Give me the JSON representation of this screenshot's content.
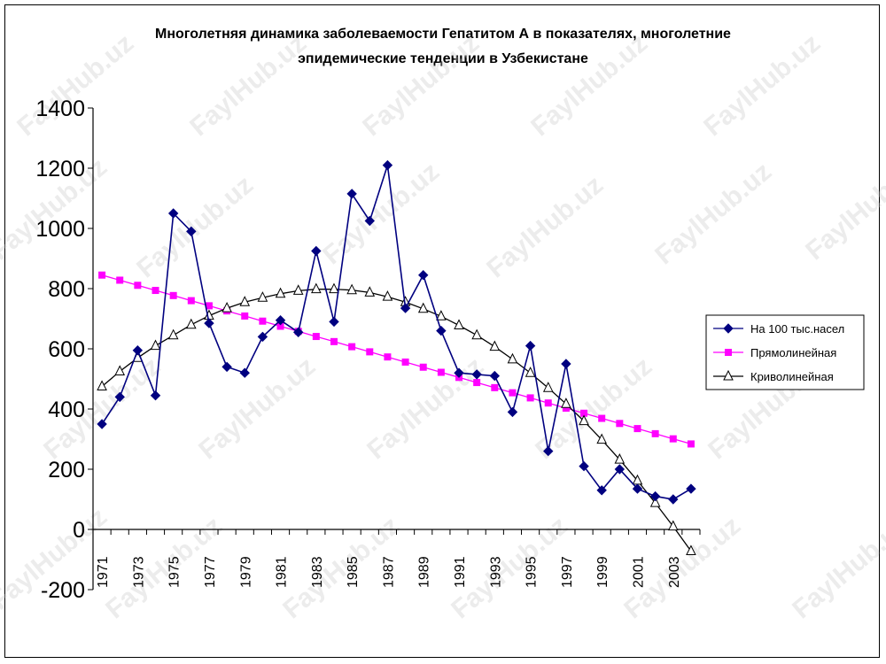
{
  "title_line1": "Многолетняя динамика заболеваемости Гепатитом А в показателях, многолетние",
  "title_line2": "эпидемические тенденции в Узбекистане",
  "watermark": "FaylHub.uz",
  "chart_data": {
    "type": "line",
    "title": "Многолетняя динамика заболеваемости Гепатитом А в показателях, многолетние эпидемические тенденции в Узбекистане",
    "xlabel": "",
    "ylabel": "",
    "ylim": [
      -200,
      1400
    ],
    "yticks": [
      -200,
      0,
      200,
      400,
      600,
      800,
      1000,
      1200,
      1400
    ],
    "xtick_labels": [
      "1971",
      "1973",
      "1975",
      "1977",
      "1979",
      "1981",
      "1983",
      "1985",
      "1987",
      "1989",
      "1991",
      "1993",
      "1995",
      "1997",
      "1999",
      "2001",
      "2003"
    ],
    "x": [
      1971,
      1972,
      1973,
      1974,
      1975,
      1976,
      1977,
      1978,
      1979,
      1980,
      1981,
      1982,
      1983,
      1984,
      1985,
      1986,
      1987,
      1988,
      1989,
      1990,
      1991,
      1992,
      1993,
      1994,
      1995,
      1996,
      1997,
      1998,
      1999,
      2000,
      2001,
      2002,
      2003,
      2004
    ],
    "grid": false,
    "legend_position": "right",
    "series": [
      {
        "name": "На 100 тыс.насел",
        "color": "#000080",
        "marker": "diamond",
        "values": [
          350,
          440,
          595,
          445,
          1050,
          990,
          685,
          540,
          520,
          640,
          695,
          655,
          925,
          690,
          1115,
          1025,
          1210,
          735,
          845,
          660,
          520,
          515,
          510,
          390,
          610,
          260,
          550,
          210,
          130,
          200,
          135,
          110,
          100,
          135
        ]
      },
      {
        "name": "Прямолинейная",
        "color": "#ff00ff",
        "marker": "square",
        "values": [
          845,
          828,
          811,
          794,
          777,
          760,
          743,
          726,
          709,
          692,
          675,
          658,
          641,
          624,
          607,
          590,
          573,
          556,
          539,
          522,
          505,
          488,
          471,
          454,
          437,
          420,
          403,
          386,
          369,
          352,
          335,
          318,
          301,
          284
        ]
      },
      {
        "name": "Криволинейная",
        "color": "#000000",
        "marker": "triangle",
        "values": [
          475,
          525,
          570,
          610,
          645,
          680,
          710,
          735,
          755,
          770,
          783,
          793,
          798,
          798,
          795,
          787,
          773,
          755,
          733,
          708,
          678,
          645,
          607,
          565,
          520,
          470,
          417,
          360,
          298,
          232,
          162,
          88,
          10,
          -72
        ]
      }
    ]
  }
}
